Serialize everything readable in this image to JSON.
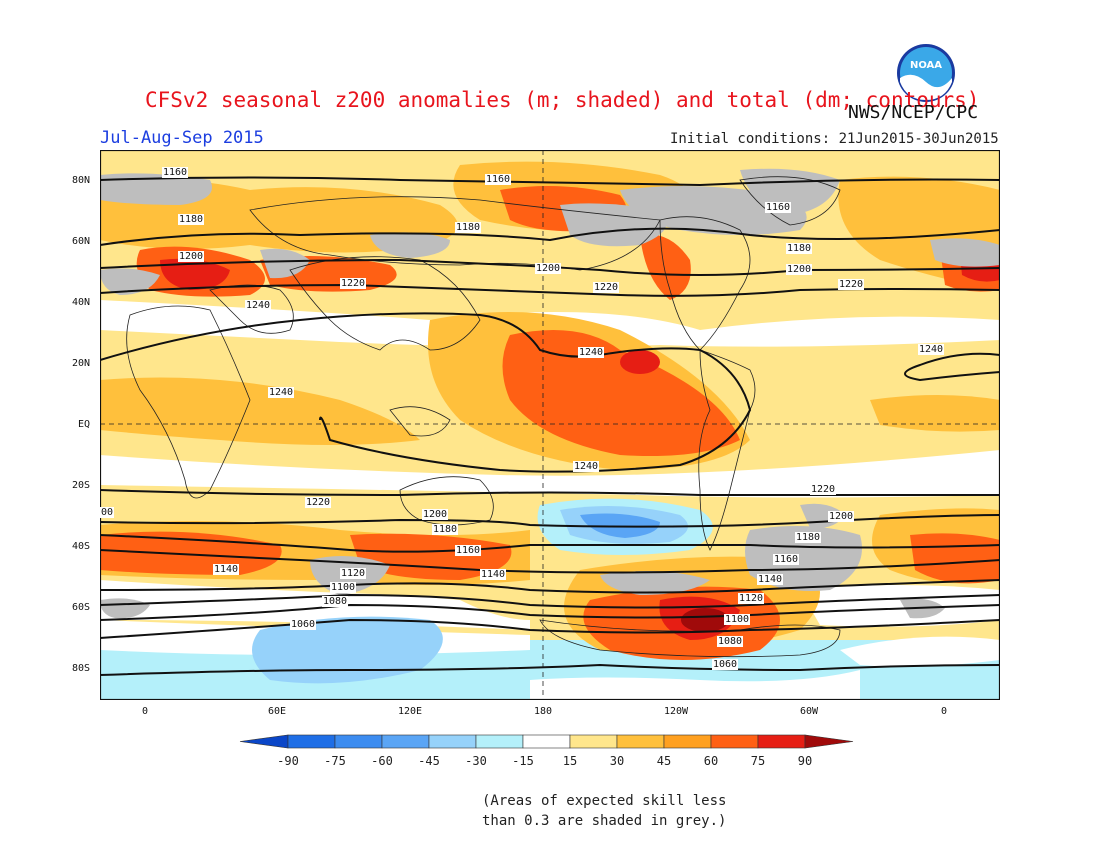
{
  "header": {
    "title": "CFSv2 seasonal z200 anomalies (m; shaded) and total (dm; contours)",
    "agency": "NWS/NCEP/CPC",
    "season": "Jul-Aug-Sep 2015",
    "initial_conditions": "Initial conditions: 21Jun2015-30Jun2015",
    "logo_text": "NOAA"
  },
  "axes": {
    "lat_labels": [
      "80N",
      "60N",
      "40N",
      "20N",
      "EQ",
      "20S",
      "40S",
      "60S",
      "80S"
    ],
    "lon_labels": [
      "0",
      "60E",
      "120E",
      "180",
      "120W",
      "60W",
      "0"
    ]
  },
  "contour_labels": [
    {
      "text": "1160"
    },
    {
      "text": "1160"
    },
    {
      "text": "1160"
    },
    {
      "text": "1180"
    },
    {
      "text": "1180"
    },
    {
      "text": "1180"
    },
    {
      "text": "1200"
    },
    {
      "text": "1200"
    },
    {
      "text": "1200"
    },
    {
      "text": "1220"
    },
    {
      "text": "1220"
    },
    {
      "text": "1220"
    },
    {
      "text": "1240"
    },
    {
      "text": "1240"
    },
    {
      "text": "1240"
    },
    {
      "text": "1240"
    },
    {
      "text": "1240"
    },
    {
      "text": "1220"
    },
    {
      "text": "1220"
    },
    {
      "text": "1200"
    },
    {
      "text": "1200"
    },
    {
      "text": "00"
    },
    {
      "text": "1180"
    },
    {
      "text": "1180"
    },
    {
      "text": "1160"
    },
    {
      "text": "1160"
    },
    {
      "text": "1140"
    },
    {
      "text": "1140"
    },
    {
      "text": "1140"
    },
    {
      "text": "1120"
    },
    {
      "text": "1120"
    },
    {
      "text": "1100"
    },
    {
      "text": "1100"
    },
    {
      "text": "1080"
    },
    {
      "text": "1080"
    },
    {
      "text": "1060"
    },
    {
      "text": "1060"
    }
  ],
  "colorbar": {
    "ticks": [
      "-90",
      "-75",
      "-60",
      "-45",
      "-30",
      "-15",
      "15",
      "30",
      "45",
      "60",
      "75",
      "90"
    ],
    "colors": [
      "#0a46c8",
      "#1e6ee6",
      "#3c8cf0",
      "#5aa5f5",
      "#96d2fa",
      "#b4f0fa",
      "#ffffff",
      "#ffe68c",
      "#ffc03c",
      "#ffa020",
      "#ff6014",
      "#e61e14",
      "#a00a0a"
    ]
  },
  "note": {
    "line1": "(Areas of expected skill less",
    "line2": "than 0.3 are shaded in grey.)"
  }
}
